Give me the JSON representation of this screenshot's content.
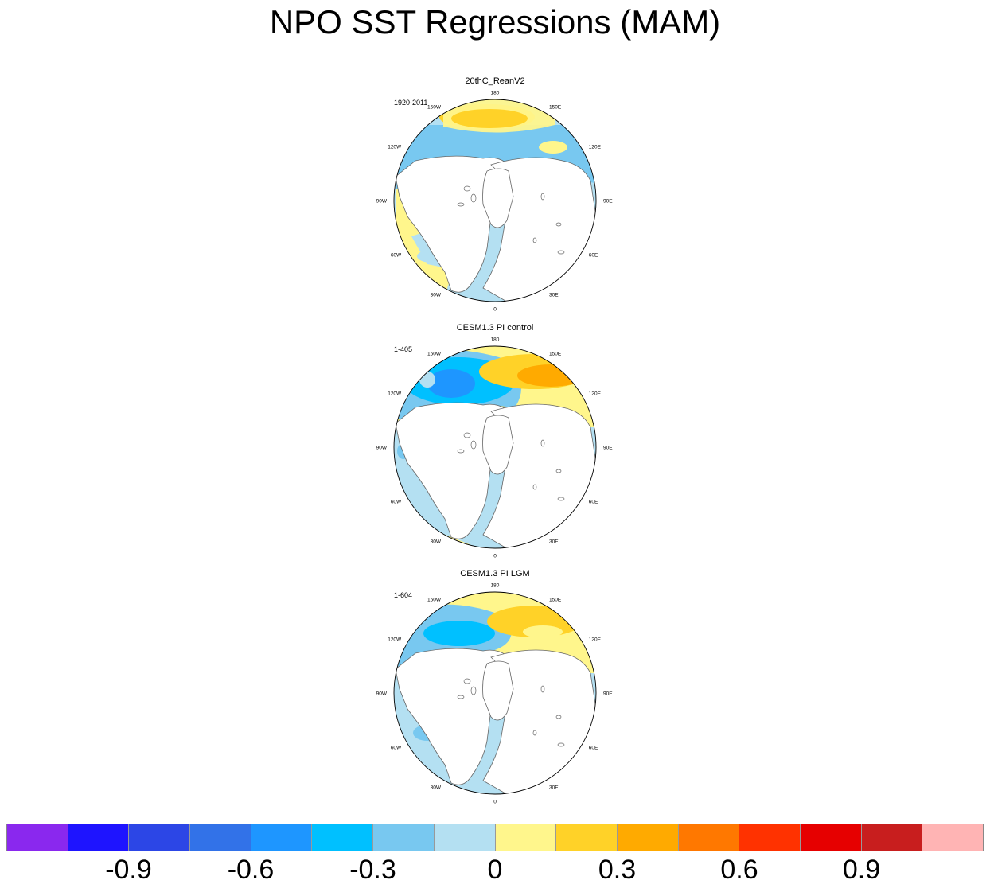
{
  "title": "NPO SST Regressions (MAM)",
  "panels": [
    {
      "title": "20thC_ReanV2",
      "period": "1920-2011",
      "variant": "reanalysis"
    },
    {
      "title": "CESM1.3 PI control",
      "period": "1-405",
      "variant": "picontrol"
    },
    {
      "title": "CESM1.3 PI LGM",
      "period": "1-604",
      "variant": "lgm"
    }
  ],
  "longitude_labels": [
    "180",
    "150E",
    "120E",
    "90E",
    "60E",
    "30E",
    "0",
    "30W",
    "60W",
    "90W",
    "120W",
    "150W"
  ],
  "colorbar": {
    "colors": [
      "#8a28ee",
      "#1e14ff",
      "#2c46e6",
      "#3272e8",
      "#1e96ff",
      "#00c0ff",
      "#78c8f0",
      "#b4e0f2",
      "#fff68c",
      "#ffd228",
      "#ffaa00",
      "#ff7800",
      "#ff3200",
      "#e60000",
      "#c81e1e",
      "#ffb4b4"
    ],
    "labels": [
      "-0.9",
      "-0.6",
      "-0.3",
      "0",
      "0.3",
      "0.6",
      "0.9"
    ]
  }
}
